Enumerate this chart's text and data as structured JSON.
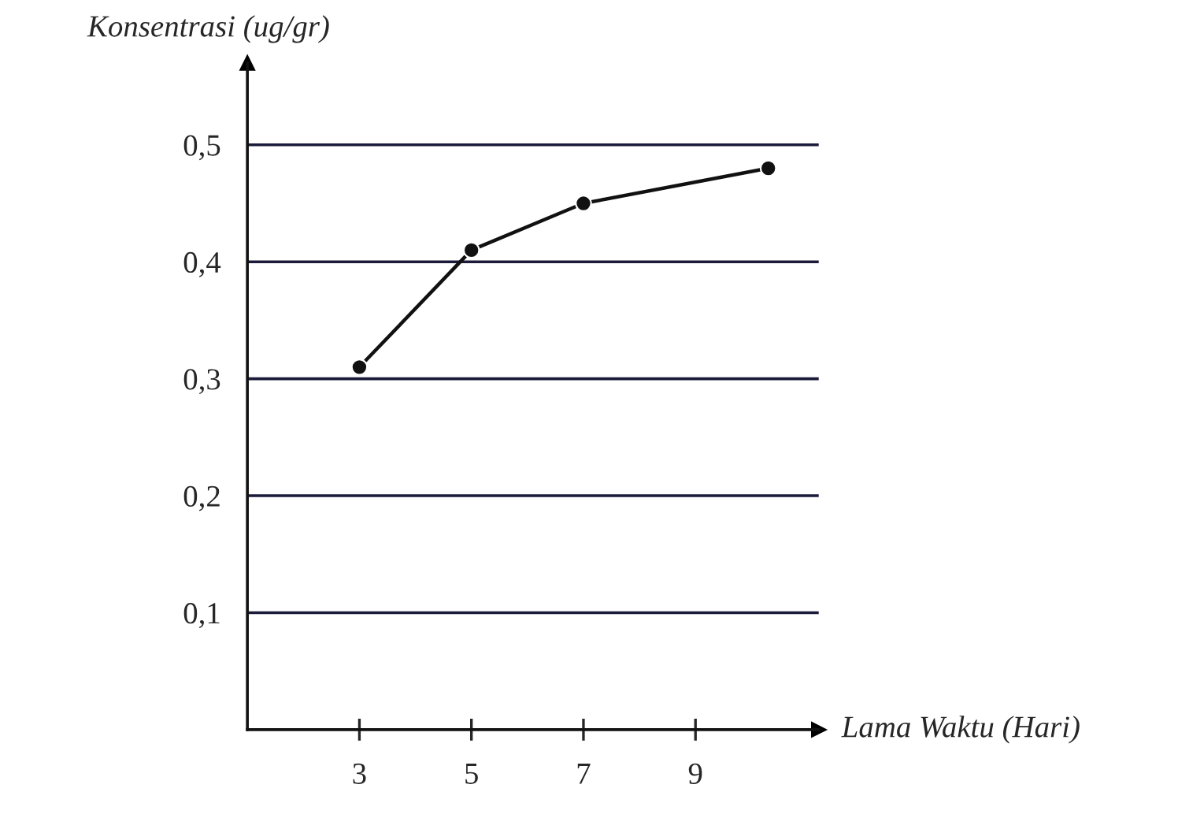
{
  "chart_data": {
    "type": "line",
    "xlabel": "Lama Waktu (Hari)",
    "ylabel": "Konsentrasi (ug/gr)",
    "x": [
      3,
      5,
      7,
      10.3
    ],
    "series": [
      {
        "color": "#111111",
        "values": [
          0.31,
          0.41,
          0.45,
          0.48
        ]
      }
    ],
    "xlim": [
      1,
      11.2
    ],
    "xticks": [
      3,
      5,
      7,
      9
    ],
    "ylim": [
      0,
      0.57
    ],
    "yticks": [
      {
        "value": 0.1,
        "label": "0,1"
      },
      {
        "value": 0.2,
        "label": "0,2"
      },
      {
        "value": 0.3,
        "label": "0,3"
      },
      {
        "value": 0.4,
        "label": "0,4"
      },
      {
        "value": 0.5,
        "label": "0,5"
      }
    ],
    "grid": "y",
    "marker": "circle",
    "line_style": "solid"
  }
}
